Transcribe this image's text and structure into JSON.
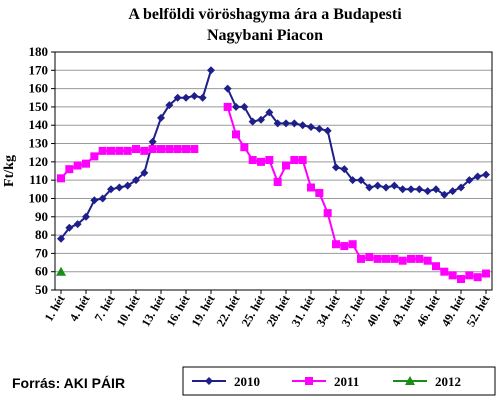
{
  "chart_data": {
    "type": "line",
    "title_line1": "A belföldi vöröshagyma ára a Budapesti",
    "title_line2": "Nagybani Piacon",
    "ylabel": "Ft/kg",
    "xlabel": "",
    "ylim": [
      50,
      180
    ],
    "yticks": [
      50,
      60,
      70,
      80,
      90,
      100,
      110,
      120,
      130,
      140,
      150,
      160,
      170,
      180
    ],
    "xtick_weeks": [
      1,
      4,
      7,
      10,
      13,
      16,
      19,
      22,
      25,
      28,
      31,
      34,
      37,
      40,
      43,
      46,
      49,
      52
    ],
    "xtick_labels": [
      "1. hét",
      "4. hét",
      "7. hét",
      "10. hét",
      "13. hét",
      "16. hét",
      "19. hét",
      "22. hét",
      "25. hét",
      "28. hét",
      "31. hét",
      "34. hét",
      "37. hét",
      "40. hét",
      "43. hét",
      "46. hét",
      "49. hét",
      "52. hét"
    ],
    "grid": true,
    "legend_position": "bottom",
    "series": [
      {
        "name": "2010",
        "color": "#1f1f8c",
        "marker": "diamond",
        "x": [
          1,
          2,
          3,
          4,
          5,
          6,
          7,
          8,
          9,
          10,
          11,
          12,
          13,
          14,
          15,
          16,
          17,
          18,
          19,
          21,
          22,
          23,
          24,
          25,
          26,
          27,
          28,
          29,
          30,
          31,
          32,
          33,
          34,
          35,
          36,
          37,
          38,
          39,
          40,
          41,
          42,
          43,
          44,
          45,
          46,
          47,
          48,
          49,
          50,
          51,
          52
        ],
        "y": [
          78,
          84,
          86,
          90,
          99,
          100,
          105,
          106,
          107,
          110,
          114,
          131,
          144,
          151,
          155,
          155,
          156,
          155,
          170,
          160,
          150,
          150,
          142,
          143,
          147,
          141,
          141,
          141,
          140,
          139,
          138,
          137,
          117,
          116,
          110,
          110,
          106,
          107,
          106,
          107,
          105,
          105,
          105,
          104,
          105,
          102,
          104,
          106,
          110,
          112,
          113
        ]
      },
      {
        "name": "2011",
        "color": "#ff00ff",
        "marker": "square",
        "x": [
          1,
          2,
          3,
          4,
          5,
          6,
          7,
          8,
          9,
          10,
          11,
          12,
          13,
          14,
          15,
          16,
          17,
          21,
          22,
          23,
          24,
          25,
          26,
          27,
          28,
          29,
          30,
          31,
          32,
          33,
          34,
          35,
          36,
          37,
          38,
          39,
          40,
          41,
          42,
          43,
          44,
          45,
          46,
          47,
          48,
          49,
          50,
          51,
          52
        ],
        "y": [
          111,
          116,
          118,
          119,
          123,
          126,
          126,
          126,
          126,
          127,
          126,
          127,
          127,
          127,
          127,
          127,
          127,
          150,
          135,
          128,
          121,
          120,
          121,
          109,
          118,
          121,
          121,
          106,
          103,
          92,
          75,
          74,
          75,
          67,
          68,
          67,
          67,
          67,
          66,
          67,
          67,
          66,
          63,
          60,
          58,
          56,
          58,
          57,
          59
        ]
      },
      {
        "name": "2012",
        "color": "#1a8c1a",
        "marker": "triangle",
        "x": [
          1
        ],
        "y": [
          60
        ]
      }
    ]
  },
  "source": "Forrás: AKI PÁIR"
}
